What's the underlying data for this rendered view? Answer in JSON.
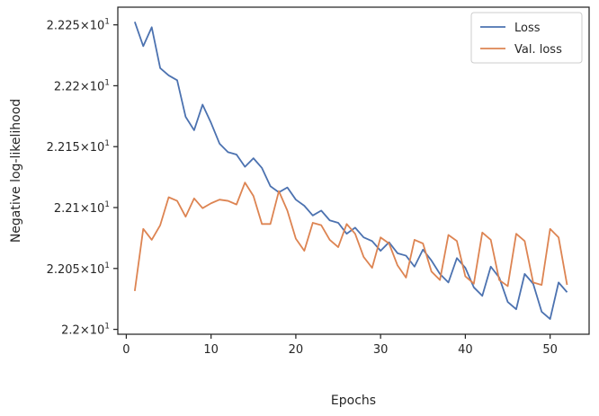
{
  "chart_data": {
    "type": "line",
    "xlabel": "Epochs",
    "ylabel": "Negative log-likelihood",
    "xlim": [
      -1,
      54.6
    ],
    "ylim": [
      21.996,
      22.2645
    ],
    "xticks": [
      0,
      10,
      20,
      30,
      40,
      50
    ],
    "yticks": [
      {
        "value": 22.0,
        "base": "2.2",
        "sup": "1"
      },
      {
        "value": 22.05,
        "base": "2.205",
        "sup": "1"
      },
      {
        "value": 22.1,
        "base": "2.21",
        "sup": "1"
      },
      {
        "value": 22.15,
        "base": "2.215",
        "sup": "1"
      },
      {
        "value": 22.2,
        "base": "2.22",
        "sup": "1"
      },
      {
        "value": 22.25,
        "base": "2.225",
        "sup": "1"
      }
    ],
    "tick_mult": "×",
    "tick_base": "10",
    "grid": false,
    "legend_position": "top-right",
    "x": [
      1,
      2,
      3,
      4,
      5,
      6,
      7,
      8,
      9,
      10,
      11,
      12,
      13,
      14,
      15,
      16,
      17,
      18,
      19,
      20,
      21,
      22,
      23,
      24,
      25,
      26,
      27,
      28,
      29,
      30,
      31,
      32,
      33,
      34,
      35,
      36,
      37,
      38,
      39,
      40,
      41,
      42,
      43,
      44,
      45,
      46,
      47,
      48,
      49,
      50,
      51,
      52
    ],
    "series": [
      {
        "name": "Loss",
        "color": "#4c72b0",
        "values": [
          22.2525,
          22.2325,
          22.248,
          22.2145,
          22.2085,
          22.2045,
          22.1745,
          22.1635,
          22.1845,
          22.1695,
          22.1525,
          22.1455,
          22.1435,
          22.1335,
          22.1405,
          22.1325,
          22.1175,
          22.1125,
          22.1165,
          22.1065,
          22.1015,
          22.0935,
          22.0975,
          22.0895,
          22.0875,
          22.0785,
          22.0835,
          22.0755,
          22.0725,
          22.0645,
          22.0715,
          22.0625,
          22.0605,
          22.0515,
          22.0655,
          22.0565,
          22.0455,
          22.0385,
          22.0585,
          22.0505,
          22.0345,
          22.0275,
          22.0515,
          22.0425,
          22.0225,
          22.0165,
          22.0455,
          22.0375,
          22.0145,
          22.0085,
          22.0385,
          22.0305
        ]
      },
      {
        "name": "Val. loss",
        "color": "#dd8452",
        "values": [
          22.0315,
          22.0825,
          22.0735,
          22.0855,
          22.1085,
          22.1055,
          22.0925,
          22.1075,
          22.0995,
          22.1035,
          22.1065,
          22.1055,
          22.1025,
          22.1205,
          22.1095,
          22.0865,
          22.0865,
          22.1135,
          22.0975,
          22.0745,
          22.0645,
          22.0875,
          22.0855,
          22.0735,
          22.0675,
          22.0865,
          22.0785,
          22.0595,
          22.0505,
          22.0755,
          22.0705,
          22.0525,
          22.0425,
          22.0735,
          22.0705,
          22.0475,
          22.0405,
          22.0775,
          22.0725,
          22.0435,
          22.0375,
          22.0795,
          22.0735,
          22.0405,
          22.0355,
          22.0785,
          22.0725,
          22.0385,
          22.0365,
          22.0825,
          22.0755,
          22.0365
        ]
      }
    ]
  }
}
